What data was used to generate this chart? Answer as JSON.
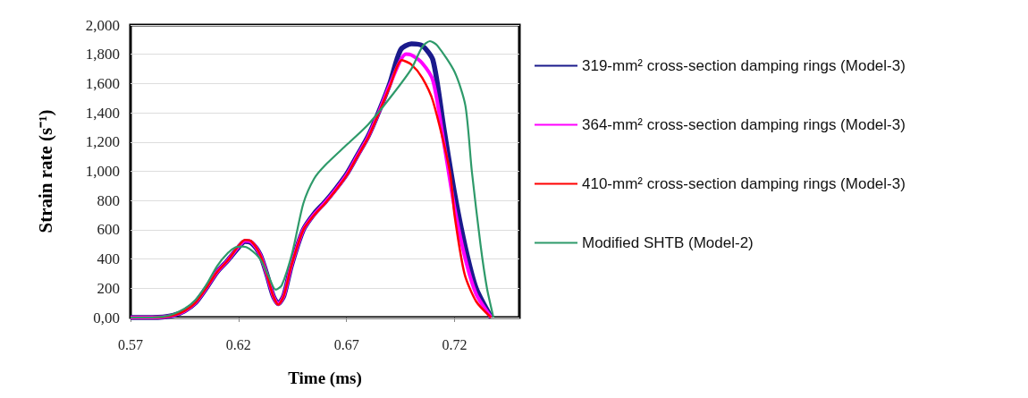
{
  "chart_data": {
    "type": "line",
    "xlabel": "Time (ms)",
    "ylabel": "Strain rate (s⁻¹)",
    "xlim": [
      0.57,
      0.75
    ],
    "xticks": [
      0.57,
      0.62,
      0.67,
      0.72
    ],
    "ylim": [
      0,
      2000
    ],
    "yticks": [
      {
        "value": 0,
        "label": "0,00"
      },
      {
        "value": 200,
        "label": "200"
      },
      {
        "value": 400,
        "label": "400"
      },
      {
        "value": 600,
        "label": "600"
      },
      {
        "value": 800,
        "label": "800"
      },
      {
        "value": 1000,
        "label": "1,000"
      },
      {
        "value": 1200,
        "label": "1,200"
      },
      {
        "value": 1400,
        "label": "1,400"
      },
      {
        "value": 1600,
        "label": "1,600"
      },
      {
        "value": 1800,
        "label": "1,800"
      },
      {
        "value": 2000,
        "label": "2,000"
      }
    ],
    "grid": "y",
    "legend": "right",
    "marker": "none",
    "line_style": "solid",
    "series": [
      {
        "name": "319-mm² cross-section damping rings (Model-3)",
        "color": "#1a1a8c",
        "x": [
          0.57,
          0.58,
          0.585,
          0.59,
          0.595,
          0.6,
          0.605,
          0.61,
          0.615,
          0.62,
          0.623,
          0.626,
          0.63,
          0.633,
          0.636,
          0.6384,
          0.641,
          0.6445,
          0.65,
          0.655,
          0.66,
          0.665,
          0.67,
          0.675,
          0.68,
          0.685,
          0.69,
          0.695,
          0.7,
          0.705,
          0.71,
          0.715,
          0.72,
          0.725,
          0.73,
          0.737
        ],
        "values": [
          0,
          0,
          3,
          15,
          45,
          100,
          200,
          310,
          390,
          480,
          520,
          510,
          430,
          300,
          150,
          95,
          150,
          357,
          600,
          710,
          790,
          880,
          980,
          1110,
          1240,
          1410,
          1600,
          1830,
          1872,
          1860,
          1760,
          1300,
          850,
          480,
          200,
          0
        ]
      },
      {
        "name": "364-mm² cross-section damping rings (Model-3)",
        "color": "#ff00ff",
        "x": [
          0.57,
          0.58,
          0.585,
          0.59,
          0.595,
          0.6,
          0.605,
          0.61,
          0.615,
          0.62,
          0.623,
          0.626,
          0.63,
          0.633,
          0.636,
          0.6384,
          0.641,
          0.6445,
          0.65,
          0.655,
          0.66,
          0.665,
          0.67,
          0.675,
          0.68,
          0.685,
          0.69,
          0.6975,
          0.7,
          0.705,
          0.71,
          0.715,
          0.72,
          0.725,
          0.73,
          0.737
        ],
        "values": [
          0,
          0,
          3,
          15,
          45,
          100,
          200,
          310,
          390,
          485,
          525,
          515,
          430,
          300,
          150,
          92,
          150,
          357,
          600,
          705,
          785,
          875,
          975,
          1105,
          1235,
          1405,
          1590,
          1801,
          1795,
          1740,
          1620,
          1200,
          750,
          400,
          160,
          0
        ]
      },
      {
        "name": "410-mm² cross-section damping rings (Model-3)",
        "color": "#ff0000",
        "x": [
          0.57,
          0.58,
          0.585,
          0.59,
          0.595,
          0.6,
          0.605,
          0.61,
          0.615,
          0.62,
          0.623,
          0.626,
          0.63,
          0.633,
          0.636,
          0.6384,
          0.641,
          0.6445,
          0.65,
          0.655,
          0.66,
          0.665,
          0.67,
          0.675,
          0.68,
          0.685,
          0.69,
          0.6956,
          0.7,
          0.705,
          0.71,
          0.7178,
          0.72,
          0.7246,
          0.73,
          0.7369
        ],
        "values": [
          0,
          0,
          3,
          15,
          45,
          100,
          200,
          310,
          390,
          490,
          530,
          520,
          430,
          300,
          150,
          88,
          150,
          357,
          600,
          700,
          780,
          870,
          970,
          1100,
          1230,
          1400,
          1580,
          1760,
          1730,
          1640,
          1480,
          1000,
          700,
          300,
          110,
          0
        ]
      },
      {
        "name": "Modified SHTB (Model-2)",
        "color": "#2e9a6a",
        "x": [
          0.57,
          0.58,
          0.585,
          0.59,
          0.595,
          0.6,
          0.605,
          0.61,
          0.615,
          0.6186,
          0.622,
          0.625,
          0.63,
          0.634,
          0.6372,
          0.64,
          0.645,
          0.65,
          0.655,
          0.66,
          0.67,
          0.68,
          0.69,
          0.7,
          0.705,
          0.7086,
          0.712,
          0.72,
          0.725,
          0.728,
          0.732,
          0.735,
          0.738
        ],
        "values": [
          0,
          0,
          5,
          25,
          60,
          120,
          220,
          350,
          440,
          480,
          485,
          470,
          400,
          280,
          190,
          220,
          450,
          780,
          950,
          1040,
          1180,
          1320,
          1500,
          1700,
          1850,
          1890,
          1860,
          1680,
          1450,
          1000,
          500,
          200,
          0
        ]
      }
    ]
  }
}
